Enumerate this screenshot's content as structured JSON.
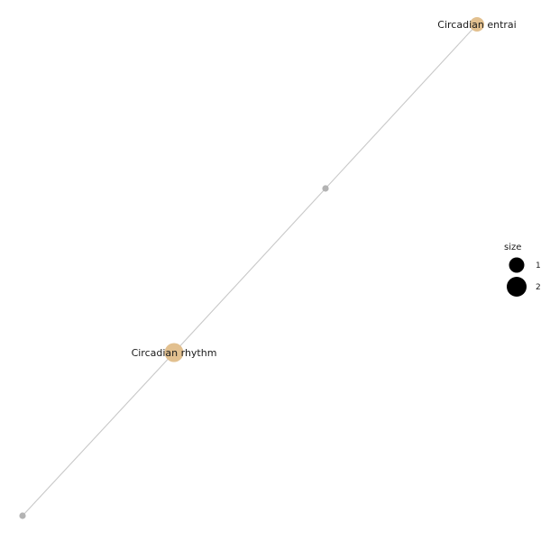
{
  "graph": {
    "colors": {
      "edge": "#c8c8c8",
      "term_node": "#e2c08f",
      "gene_node": "#b3b3b3",
      "label": "#1a1a1a",
      "legend_symbol": "#000000"
    },
    "nodes": [
      {
        "id": "circadian-entrainment",
        "label": "Circadian entrai",
        "kind": "term",
        "size": 1
      },
      {
        "id": "hub-gene",
        "label": "",
        "kind": "gene",
        "size": 0
      },
      {
        "id": "circadian-rhythm",
        "label": "Circadian rhythm",
        "kind": "term",
        "size": 2
      },
      {
        "id": "leaf-gene",
        "label": "",
        "kind": "gene",
        "size": 0
      }
    ],
    "edges": [
      {
        "source": "circadian-entrainment",
        "target": "hub-gene"
      },
      {
        "source": "hub-gene",
        "target": "circadian-rhythm"
      },
      {
        "source": "circadian-rhythm",
        "target": "leaf-gene"
      }
    ]
  },
  "legend": {
    "title": "size",
    "entries": [
      {
        "label": "1",
        "size": 1
      },
      {
        "label": "2",
        "size": 2
      }
    ]
  }
}
